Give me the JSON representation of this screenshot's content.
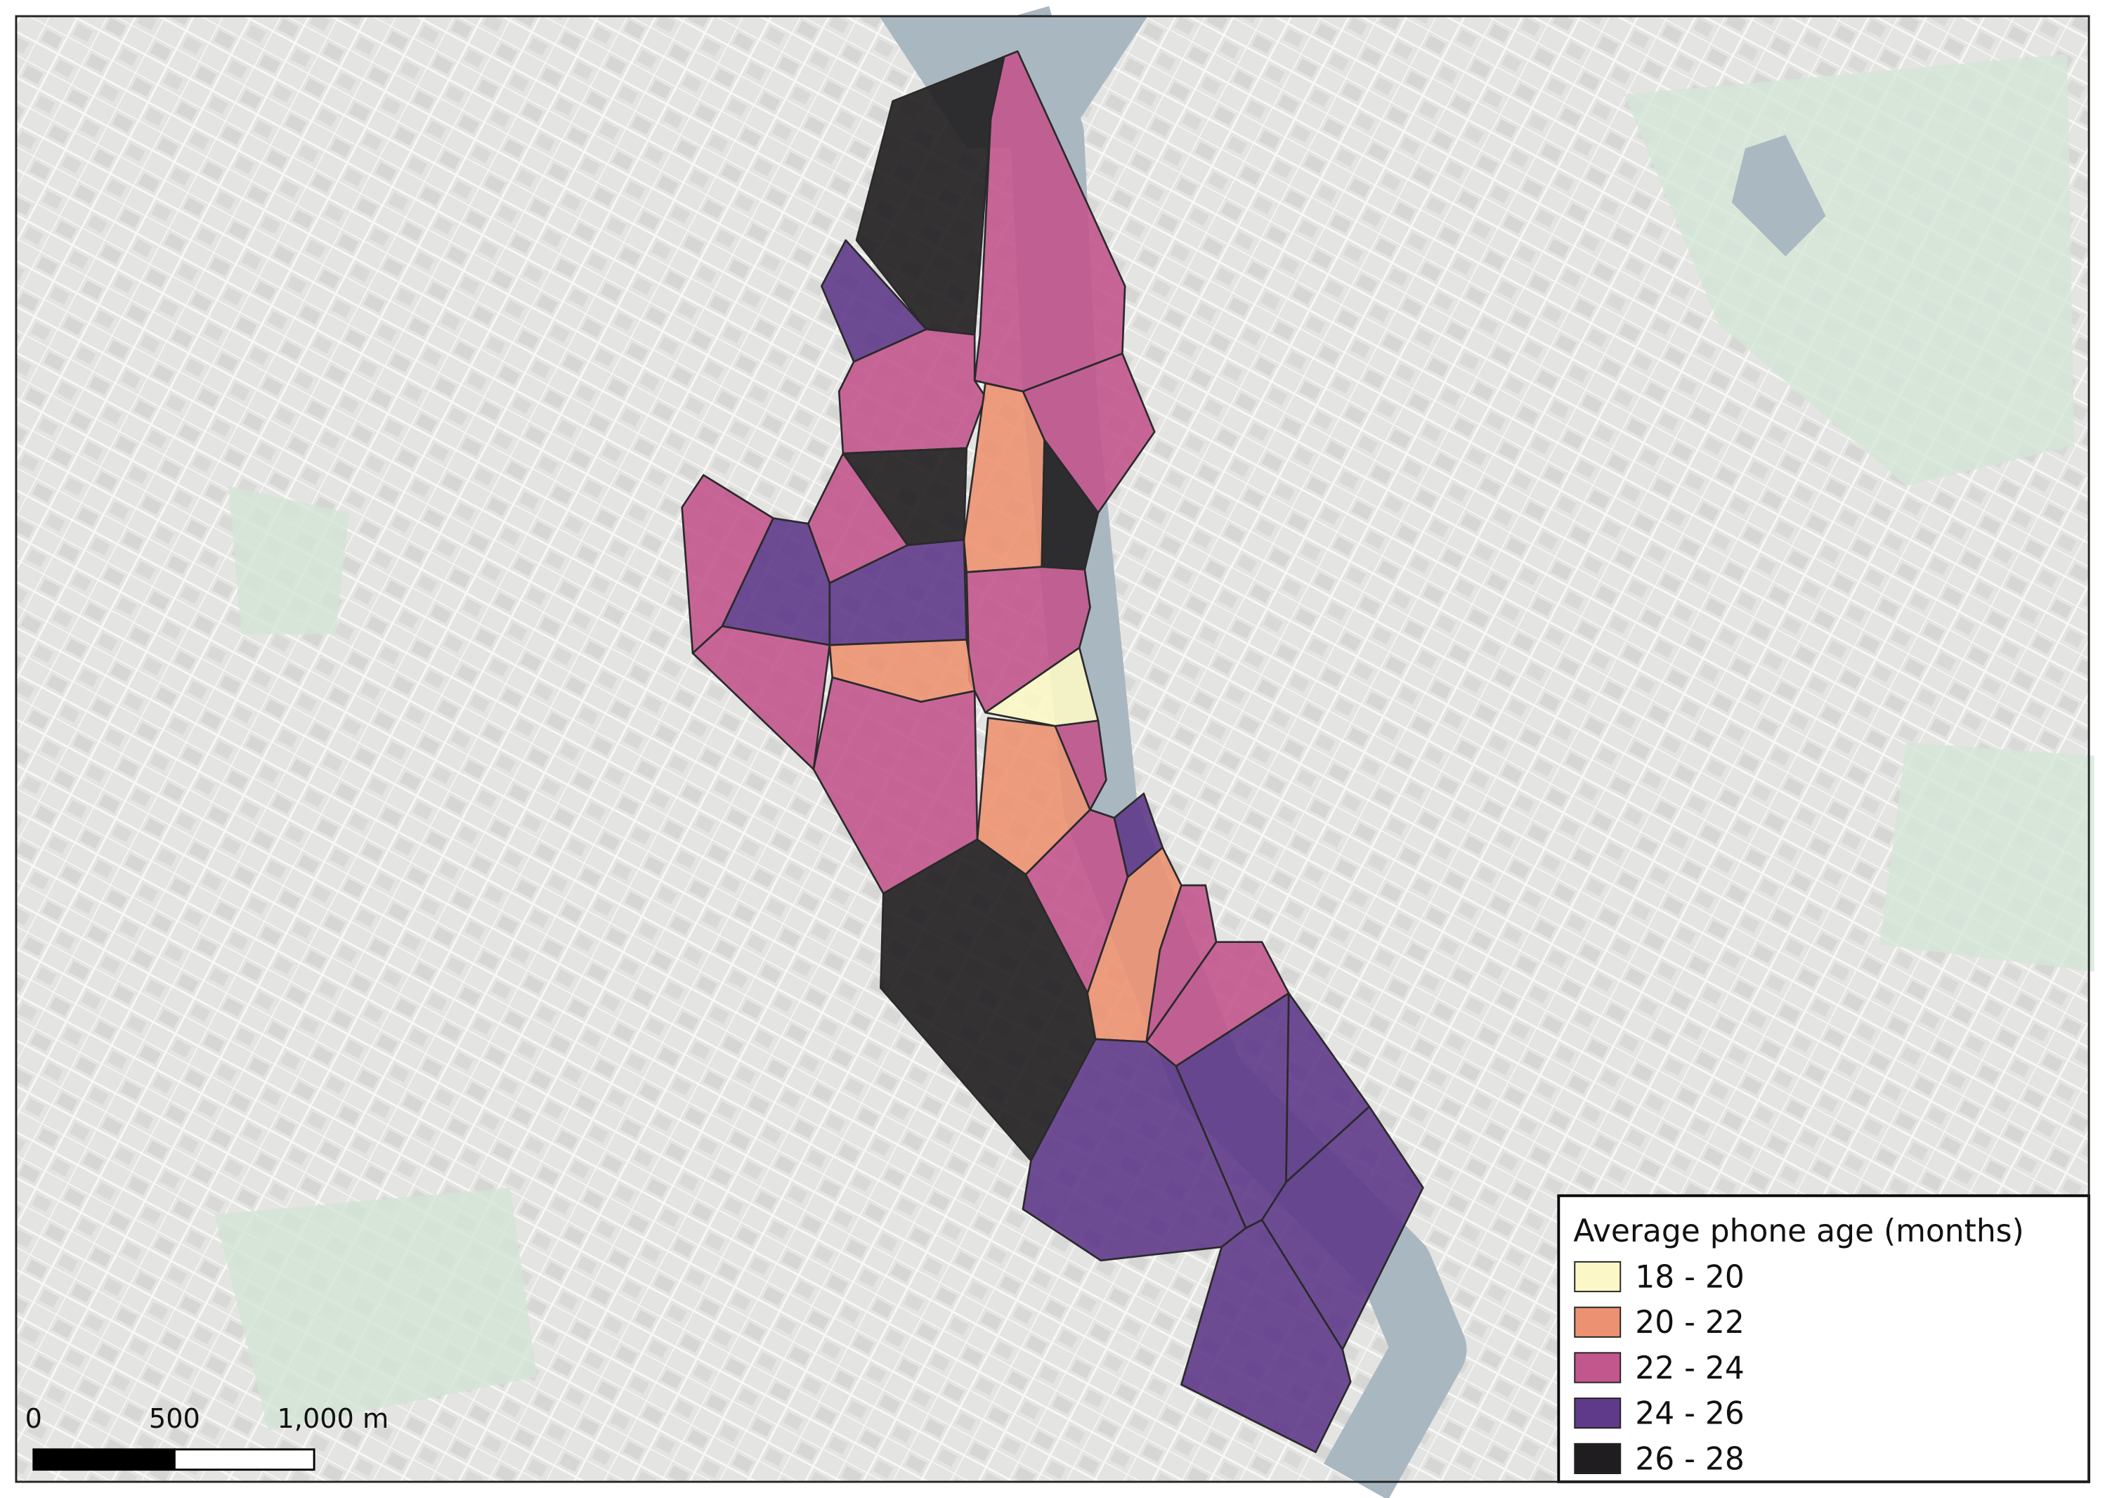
{
  "legend": {
    "title": "Average phone age (months)",
    "items": [
      {
        "label": "18 - 20",
        "color": "#fbf7c6"
      },
      {
        "label": "20 - 22",
        "color": "#ec9272"
      },
      {
        "label": "22 - 24",
        "color": "#c2578d"
      },
      {
        "label": "24 - 26",
        "color": "#5f3a8b"
      },
      {
        "label": "26 - 28",
        "color": "#1f1d1f"
      }
    ]
  },
  "scale_bar": {
    "labels": [
      "0",
      "500",
      "1,000 m"
    ]
  }
}
